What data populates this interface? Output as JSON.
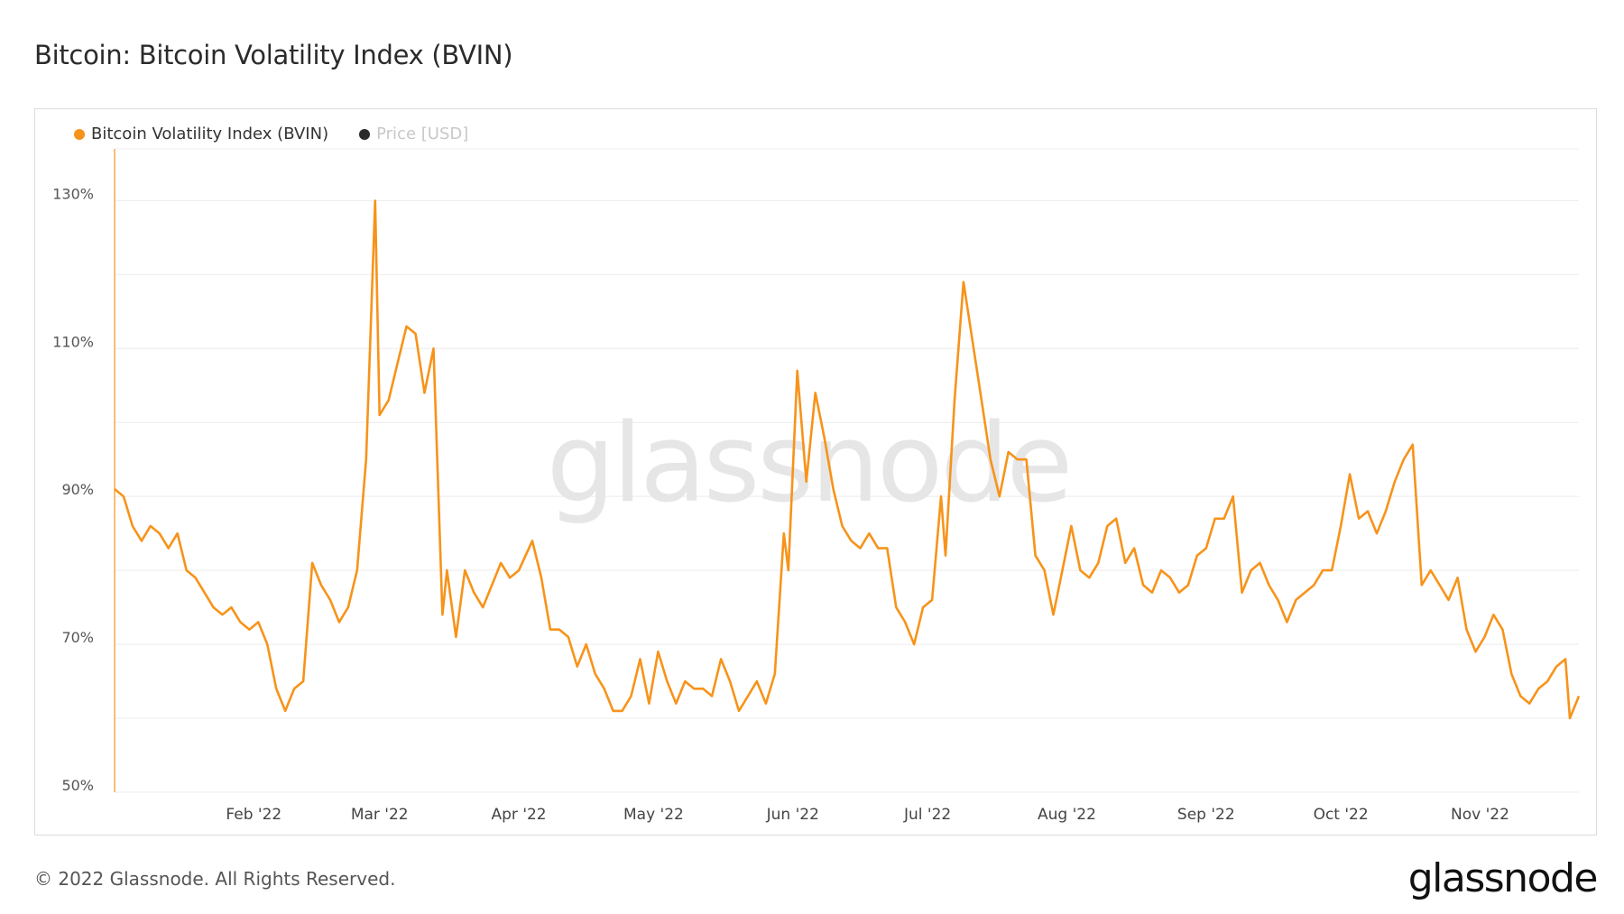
{
  "page": {
    "title": "Bitcoin: Bitcoin Volatility Index (BVIN)",
    "footer": "© 2022 Glassnode. All Rights Reserved.",
    "brand": "glassnode",
    "watermark": "glassnode"
  },
  "legend": [
    {
      "label": "Bitcoin Volatility Index (BVIN)",
      "color": "#f7931a"
    },
    {
      "label": "Price [USD]",
      "color": "#2b2b2b"
    }
  ],
  "colors": {
    "accent": "#f7931a",
    "grid": "#ececec",
    "axis": "#f7931a"
  },
  "chart_data": {
    "type": "line",
    "title": "Bitcoin: Bitcoin Volatility Index (BVIN)",
    "xlabel": "",
    "ylabel": "",
    "ylim": [
      50,
      137
    ],
    "yticks": [
      {
        "value": 50,
        "label": "50%"
      },
      {
        "value": 70,
        "label": "70%"
      },
      {
        "value": 90,
        "label": "90%"
      },
      {
        "value": 110,
        "label": "110%"
      },
      {
        "value": 130,
        "label": "130%"
      }
    ],
    "xlim": [
      "2022-01-01",
      "2022-11-23"
    ],
    "xticks": [
      {
        "date": "2022-02-01",
        "label": "Feb '22"
      },
      {
        "date": "2022-03-01",
        "label": "Mar '22"
      },
      {
        "date": "2022-04-01",
        "label": "Apr '22"
      },
      {
        "date": "2022-05-01",
        "label": "May '22"
      },
      {
        "date": "2022-06-01",
        "label": "Jun '22"
      },
      {
        "date": "2022-07-01",
        "label": "Jul '22"
      },
      {
        "date": "2022-08-01",
        "label": "Aug '22"
      },
      {
        "date": "2022-09-01",
        "label": "Sep '22"
      },
      {
        "date": "2022-10-01",
        "label": "Oct '22"
      },
      {
        "date": "2022-11-01",
        "label": "Nov '22"
      }
    ],
    "grid": true,
    "legend_position": "top-left",
    "series": [
      {
        "name": "Bitcoin Volatility Index (BVIN)",
        "color": "#f7931a",
        "points": [
          [
            "2022-01-01",
            91
          ],
          [
            "2022-01-03",
            90
          ],
          [
            "2022-01-05",
            86
          ],
          [
            "2022-01-07",
            84
          ],
          [
            "2022-01-09",
            86
          ],
          [
            "2022-01-11",
            85
          ],
          [
            "2022-01-13",
            83
          ],
          [
            "2022-01-15",
            85
          ],
          [
            "2022-01-17",
            80
          ],
          [
            "2022-01-19",
            79
          ],
          [
            "2022-01-21",
            77
          ],
          [
            "2022-01-23",
            75
          ],
          [
            "2022-01-25",
            74
          ],
          [
            "2022-01-27",
            75
          ],
          [
            "2022-01-29",
            73
          ],
          [
            "2022-01-31",
            72
          ],
          [
            "2022-02-02",
            73
          ],
          [
            "2022-02-04",
            70
          ],
          [
            "2022-02-06",
            64
          ],
          [
            "2022-02-08",
            61
          ],
          [
            "2022-02-10",
            64
          ],
          [
            "2022-02-12",
            65
          ],
          [
            "2022-02-14",
            81
          ],
          [
            "2022-02-16",
            78
          ],
          [
            "2022-02-18",
            76
          ],
          [
            "2022-02-20",
            73
          ],
          [
            "2022-02-22",
            75
          ],
          [
            "2022-02-24",
            80
          ],
          [
            "2022-02-26",
            95
          ],
          [
            "2022-02-28",
            130
          ],
          [
            "2022-03-01",
            101
          ],
          [
            "2022-03-03",
            103
          ],
          [
            "2022-03-05",
            108
          ],
          [
            "2022-03-07",
            113
          ],
          [
            "2022-03-09",
            112
          ],
          [
            "2022-03-11",
            104
          ],
          [
            "2022-03-13",
            110
          ],
          [
            "2022-03-15",
            74
          ],
          [
            "2022-03-16",
            80
          ],
          [
            "2022-03-18",
            71
          ],
          [
            "2022-03-20",
            80
          ],
          [
            "2022-03-22",
            77
          ],
          [
            "2022-03-24",
            75
          ],
          [
            "2022-03-26",
            78
          ],
          [
            "2022-03-28",
            81
          ],
          [
            "2022-03-30",
            79
          ],
          [
            "2022-04-01",
            80
          ],
          [
            "2022-04-04",
            84
          ],
          [
            "2022-04-06",
            79
          ],
          [
            "2022-04-08",
            72
          ],
          [
            "2022-04-10",
            72
          ],
          [
            "2022-04-12",
            71
          ],
          [
            "2022-04-14",
            67
          ],
          [
            "2022-04-16",
            70
          ],
          [
            "2022-04-18",
            66
          ],
          [
            "2022-04-20",
            64
          ],
          [
            "2022-04-22",
            61
          ],
          [
            "2022-04-24",
            61
          ],
          [
            "2022-04-26",
            63
          ],
          [
            "2022-04-28",
            68
          ],
          [
            "2022-04-30",
            62
          ],
          [
            "2022-05-02",
            69
          ],
          [
            "2022-05-04",
            65
          ],
          [
            "2022-05-06",
            62
          ],
          [
            "2022-05-08",
            65
          ],
          [
            "2022-05-10",
            64
          ],
          [
            "2022-05-12",
            64
          ],
          [
            "2022-05-14",
            63
          ],
          [
            "2022-05-16",
            68
          ],
          [
            "2022-05-18",
            65
          ],
          [
            "2022-05-20",
            61
          ],
          [
            "2022-05-22",
            63
          ],
          [
            "2022-05-24",
            65
          ],
          [
            "2022-05-26",
            62
          ],
          [
            "2022-05-28",
            66
          ],
          [
            "2022-05-30",
            85
          ],
          [
            "2022-05-31",
            80
          ],
          [
            "2022-06-02",
            107
          ],
          [
            "2022-06-04",
            92
          ],
          [
            "2022-06-06",
            104
          ],
          [
            "2022-06-08",
            98
          ],
          [
            "2022-06-10",
            91
          ],
          [
            "2022-06-12",
            86
          ],
          [
            "2022-06-14",
            84
          ],
          [
            "2022-06-16",
            83
          ],
          [
            "2022-06-18",
            85
          ],
          [
            "2022-06-20",
            83
          ],
          [
            "2022-06-22",
            83
          ],
          [
            "2022-06-24",
            75
          ],
          [
            "2022-06-26",
            73
          ],
          [
            "2022-06-28",
            70
          ],
          [
            "2022-06-30",
            75
          ],
          [
            "2022-07-02",
            76
          ],
          [
            "2022-07-04",
            90
          ],
          [
            "2022-07-05",
            82
          ],
          [
            "2022-07-07",
            103
          ],
          [
            "2022-07-09",
            119
          ],
          [
            "2022-07-11",
            111
          ],
          [
            "2022-07-13",
            103
          ],
          [
            "2022-07-15",
            95
          ],
          [
            "2022-07-17",
            90
          ],
          [
            "2022-07-19",
            96
          ],
          [
            "2022-07-21",
            95
          ],
          [
            "2022-07-23",
            95
          ],
          [
            "2022-07-25",
            82
          ],
          [
            "2022-07-27",
            80
          ],
          [
            "2022-07-29",
            74
          ],
          [
            "2022-07-31",
            80
          ],
          [
            "2022-08-02",
            86
          ],
          [
            "2022-08-04",
            80
          ],
          [
            "2022-08-06",
            79
          ],
          [
            "2022-08-08",
            81
          ],
          [
            "2022-08-10",
            86
          ],
          [
            "2022-08-12",
            87
          ],
          [
            "2022-08-14",
            81
          ],
          [
            "2022-08-16",
            83
          ],
          [
            "2022-08-18",
            78
          ],
          [
            "2022-08-20",
            77
          ],
          [
            "2022-08-22",
            80
          ],
          [
            "2022-08-24",
            79
          ],
          [
            "2022-08-26",
            77
          ],
          [
            "2022-08-28",
            78
          ],
          [
            "2022-08-30",
            82
          ],
          [
            "2022-09-01",
            83
          ],
          [
            "2022-09-03",
            87
          ],
          [
            "2022-09-05",
            87
          ],
          [
            "2022-09-07",
            90
          ],
          [
            "2022-09-09",
            77
          ],
          [
            "2022-09-11",
            80
          ],
          [
            "2022-09-13",
            81
          ],
          [
            "2022-09-15",
            78
          ],
          [
            "2022-09-17",
            76
          ],
          [
            "2022-09-19",
            73
          ],
          [
            "2022-09-21",
            76
          ],
          [
            "2022-09-23",
            77
          ],
          [
            "2022-09-25",
            78
          ],
          [
            "2022-09-27",
            80
          ],
          [
            "2022-09-29",
            80
          ],
          [
            "2022-10-01",
            86
          ],
          [
            "2022-10-03",
            93
          ],
          [
            "2022-10-05",
            87
          ],
          [
            "2022-10-07",
            88
          ],
          [
            "2022-10-09",
            85
          ],
          [
            "2022-10-11",
            88
          ],
          [
            "2022-10-13",
            92
          ],
          [
            "2022-10-15",
            95
          ],
          [
            "2022-10-17",
            97
          ],
          [
            "2022-10-19",
            78
          ],
          [
            "2022-10-21",
            80
          ],
          [
            "2022-10-23",
            78
          ],
          [
            "2022-10-25",
            76
          ],
          [
            "2022-10-27",
            79
          ],
          [
            "2022-10-29",
            72
          ],
          [
            "2022-10-31",
            69
          ],
          [
            "2022-11-02",
            71
          ],
          [
            "2022-11-04",
            74
          ],
          [
            "2022-11-06",
            72
          ],
          [
            "2022-11-08",
            66
          ],
          [
            "2022-11-10",
            63
          ],
          [
            "2022-11-12",
            62
          ],
          [
            "2022-11-14",
            64
          ],
          [
            "2022-11-16",
            65
          ],
          [
            "2022-11-18",
            67
          ],
          [
            "2022-11-20",
            68
          ],
          [
            "2022-11-21",
            60
          ],
          [
            "2022-11-23",
            63
          ]
        ]
      },
      {
        "name": "Price [USD]",
        "color": "#2b2b2b",
        "points": []
      }
    ]
  }
}
